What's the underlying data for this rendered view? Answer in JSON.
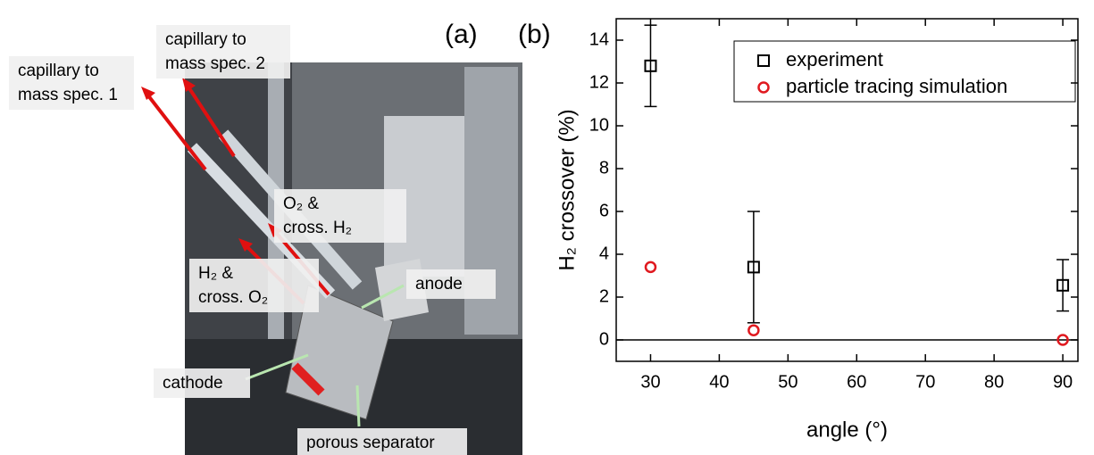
{
  "photo": {
    "panel_label": "(a)",
    "annotations": [
      {
        "lines": [
          "capillary to",
          "mass spec. 1"
        ]
      },
      {
        "lines": [
          "capillary to",
          "mass spec. 2"
        ]
      },
      {
        "lines": [
          "O₂ &",
          "cross. H₂"
        ]
      },
      {
        "lines": [
          "H₂ &",
          "cross. O₂"
        ]
      },
      {
        "lines": [
          "anode"
        ]
      },
      {
        "lines": [
          "cathode"
        ]
      },
      {
        "lines": [
          "porous separator"
        ]
      }
    ]
  },
  "chart_data": {
    "type": "scatter",
    "panel_label": "(b)",
    "x_label": "angle (°)",
    "y_label": "H₂ crossover (%)",
    "x": [
      30,
      45,
      90
    ],
    "series": [
      {
        "name": "experiment",
        "color": "#000000",
        "marker": "square",
        "values": [
          12.8,
          3.4,
          2.55
        ],
        "errors": [
          1.9,
          2.6,
          1.2
        ]
      },
      {
        "name": "particle tracing simulation",
        "color": "#e0191f",
        "marker": "circle",
        "values": [
          3.4,
          0.45,
          0
        ]
      }
    ],
    "hline": 0,
    "xlim": [
      25,
      92.2
    ],
    "ylim": [
      -1,
      15
    ],
    "xticks": [
      30,
      40,
      50,
      60,
      70,
      80,
      90
    ],
    "yticks": [
      0,
      2,
      4,
      6,
      8,
      10,
      12,
      14
    ],
    "legend": "upper right"
  }
}
